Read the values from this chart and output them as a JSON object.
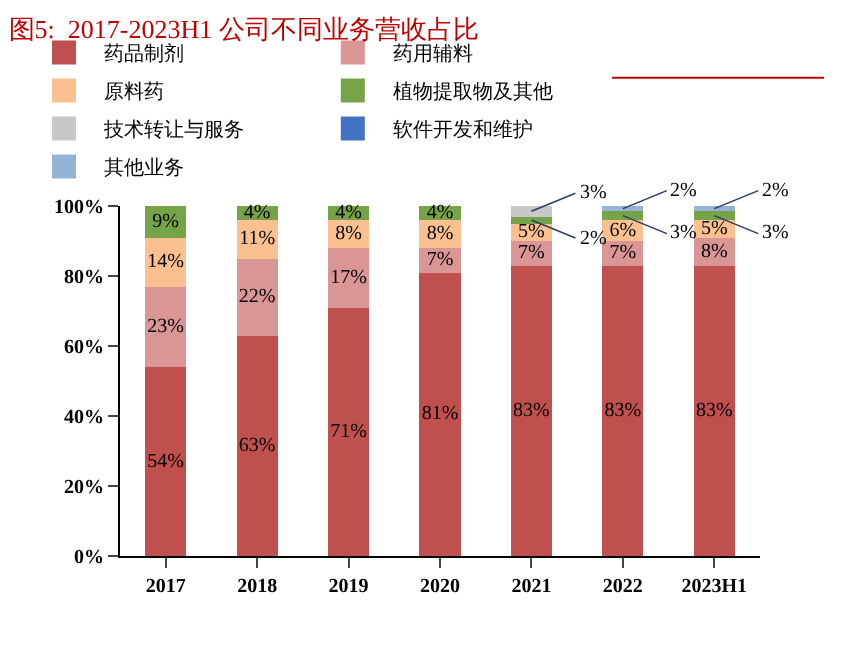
{
  "chart_data": {
    "type": "bar",
    "stacked": true,
    "title": "图5:  2017-2023H1 公司不同业务营收占比",
    "categories": [
      "2017",
      "2018",
      "2019",
      "2020",
      "2021",
      "2022",
      "2023H1"
    ],
    "series": [
      {
        "name": "药品制剂",
        "color": "#c0504d",
        "values": [
          54,
          63,
          71,
          81,
          83,
          83,
          83
        ],
        "value_labels": [
          "54%",
          "63%",
          "71%",
          "81%",
          "83%",
          "83%",
          "83%"
        ]
      },
      {
        "name": "药用辅料",
        "color": "#d99694",
        "values": [
          23,
          22,
          17,
          7,
          7,
          7,
          8
        ],
        "value_labels": [
          "23%",
          "22%",
          "17%",
          "7%",
          "7%",
          "7%",
          "8%"
        ]
      },
      {
        "name": "原料药",
        "color": "#fac090",
        "values": [
          14,
          11,
          8,
          8,
          5,
          6,
          5
        ],
        "value_labels": [
          "14%",
          "11%",
          "8%",
          "8%",
          "5%",
          "6%",
          "5%"
        ]
      },
      {
        "name": "植物提取物及其他",
        "color": "#77a348",
        "values": [
          9,
          4,
          4,
          4,
          2,
          2.5,
          2.5
        ],
        "value_labels": [
          "9%",
          "4%",
          "4%",
          "4%",
          "2%",
          "3%",
          "3%"
        ]
      },
      {
        "name": "技术转让与服务",
        "color": "#c8c8c8",
        "values": [
          null,
          null,
          null,
          null,
          3,
          null,
          null
        ],
        "value_labels": [
          null,
          null,
          null,
          null,
          "3%",
          null,
          null
        ]
      },
      {
        "name": "软件开发和维护",
        "color": "#4472c4",
        "values": [
          null,
          null,
          null,
          null,
          null,
          null,
          null
        ]
      },
      {
        "name": "其他业务",
        "color": "#95b3d7",
        "values": [
          null,
          null,
          null,
          null,
          null,
          1.5,
          1.5
        ],
        "value_labels": [
          null,
          null,
          null,
          null,
          null,
          "2%",
          "2%"
        ]
      }
    ],
    "ylim": [
      0,
      100
    ],
    "yticks": [
      {
        "value": 0,
        "label": "0%"
      },
      {
        "value": 20,
        "label": "20%"
      },
      {
        "value": 40,
        "label": "40%"
      },
      {
        "value": 60,
        "label": "60%"
      },
      {
        "value": 80,
        "label": "80%"
      },
      {
        "value": 100,
        "label": "100%"
      }
    ],
    "legend": "top"
  }
}
